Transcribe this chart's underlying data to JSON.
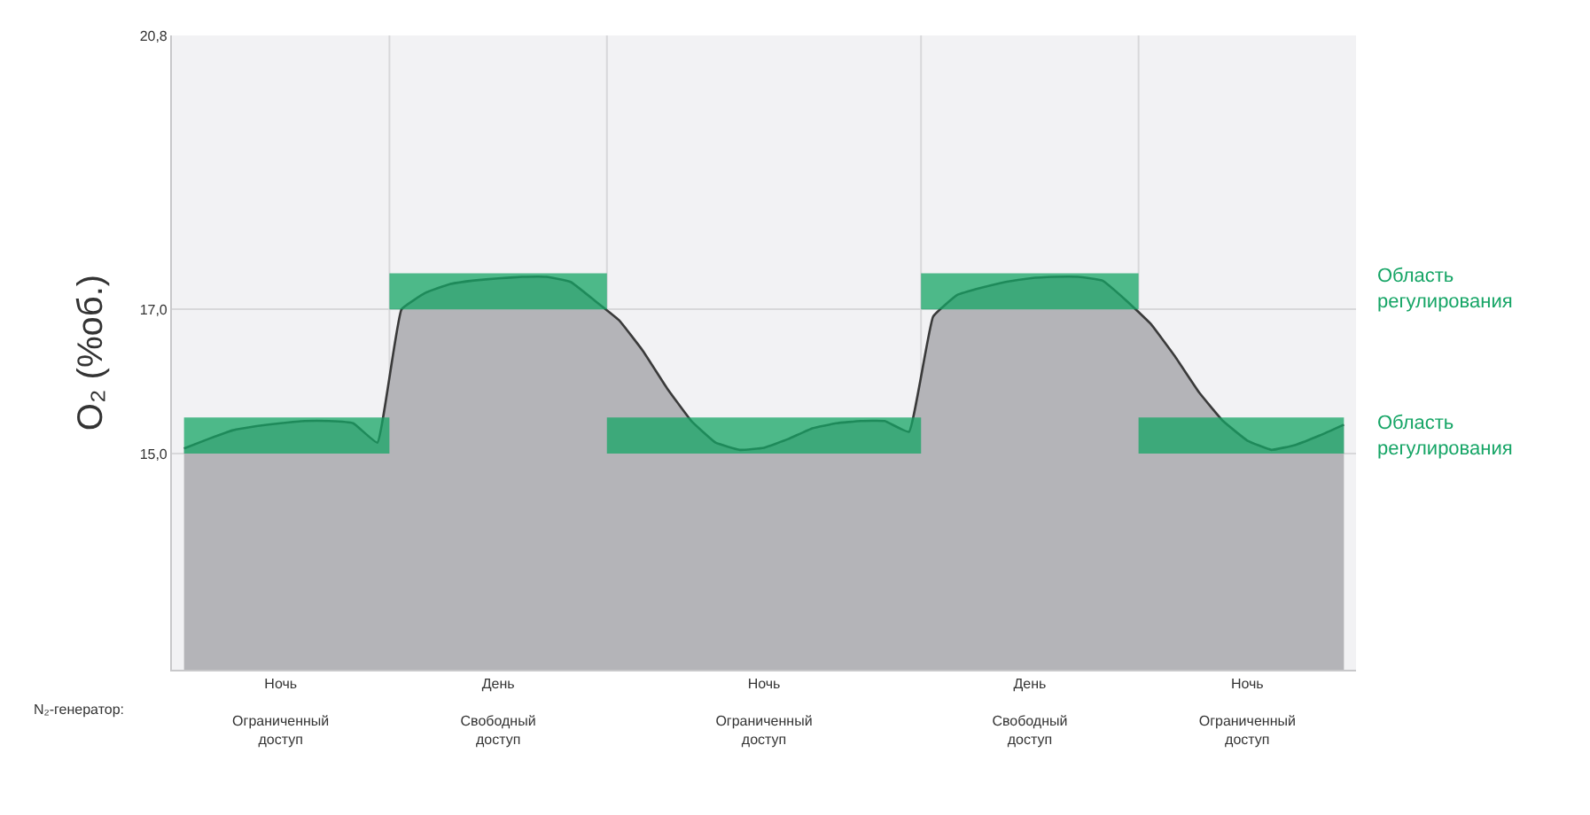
{
  "chart_data": {
    "type": "area",
    "ylabel": "O₂ (%об.)",
    "categories": [
      null,
      null,
      null,
      null,
      "Ночь\n\nОграниченный\nдоступ",
      null,
      null,
      null,
      null,
      null,
      null,
      null,
      null,
      "День\n\nСвободный\nдоступ",
      null,
      null,
      null,
      null,
      null,
      null,
      null,
      null,
      null,
      null,
      "Ночь\n\nОграниченный\nдоступ",
      null,
      null,
      null,
      null,
      null,
      null,
      null,
      null,
      null,
      null,
      "День\n\nСвободный\nдоступ",
      null,
      null,
      null,
      null,
      null,
      null,
      null,
      null,
      "Ночь\n\nОграниченный\nдоступ",
      null,
      null,
      null,
      null
    ],
    "ylim": [
      12,
      20.8
    ],
    "yticks": [
      {
        "value": 15,
        "label": "15,0"
      },
      {
        "value": 17,
        "label": "17,0"
      },
      {
        "value": 20.8,
        "label": "20,8"
      }
    ],
    "grid": "y",
    "series": [
      {
        "color": "#b4b4b8",
        "values": [
          15.07,
          15.2,
          15.32,
          15.38,
          15.42,
          15.45,
          15.45,
          15.42,
          15.15,
          17.0,
          17.23,
          17.35,
          17.4,
          17.43,
          17.45,
          17.45,
          17.38,
          17.12,
          16.85,
          16.42,
          15.9,
          15.45,
          15.15,
          15.05,
          15.08,
          15.2,
          15.35,
          15.42,
          15.45,
          15.45,
          15.3,
          16.9,
          17.2,
          17.3,
          17.38,
          17.43,
          17.45,
          17.45,
          17.4,
          17.12,
          16.8,
          16.35,
          15.85,
          15.45,
          15.18,
          15.05,
          15.12,
          15.25,
          15.4
        ],
        "lower": [
          15,
          15,
          15,
          15,
          15,
          15,
          15,
          15,
          15,
          17,
          17,
          17,
          17,
          17,
          17,
          17,
          17,
          17,
          15,
          15,
          15,
          15,
          15,
          15,
          15,
          15,
          15,
          15,
          15,
          15,
          15,
          17,
          17,
          17,
          17,
          17,
          17,
          17,
          17,
          17,
          15,
          15,
          15,
          15,
          15,
          15,
          15,
          15,
          15
        ],
        "upper": [
          15.5,
          15.5,
          15.5,
          15.5,
          15.5,
          15.5,
          15.5,
          15.5,
          15.5,
          17.5,
          17.5,
          17.5,
          17.5,
          17.5,
          17.5,
          17.5,
          17.5,
          17.5,
          15.5,
          15.5,
          15.5,
          15.5,
          15.5,
          15.5,
          15.5,
          15.5,
          15.5,
          15.5,
          15.5,
          15.5,
          15.5,
          17.5,
          17.5,
          17.5,
          17.5,
          17.5,
          17.5,
          17.5,
          17.5,
          17.5,
          15.5,
          15.5,
          15.5,
          15.5,
          15.5,
          15.5,
          15.5,
          15.5,
          15.5
        ]
      }
    ],
    "annotations": [
      "Область\nрегулирования",
      "Область\nрегулирования",
      "N₂-генератор:"
    ]
  }
}
